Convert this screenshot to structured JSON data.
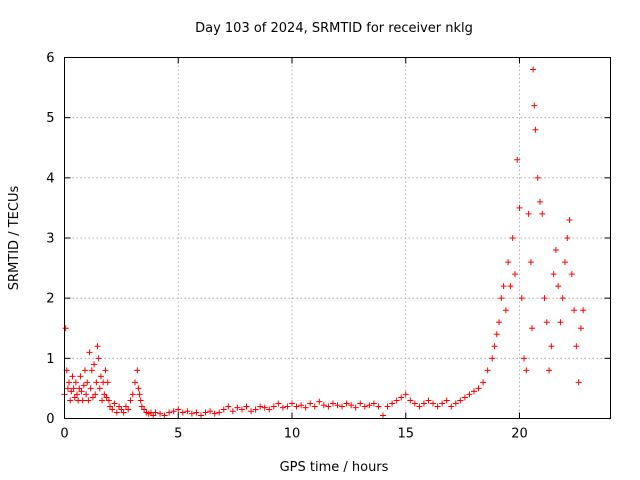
{
  "chart_data": {
    "type": "scatter",
    "title": "Day 103 of 2024, SRMTID for receiver nklg",
    "xlabel": "GPS time / hours",
    "ylabel": "SRMTID / TECUs",
    "xlim": [
      0,
      24
    ],
    "ylim": [
      0,
      6
    ],
    "xticks": [
      0,
      5,
      10,
      15,
      20
    ],
    "yticks": [
      0,
      1,
      2,
      3,
      4,
      5,
      6
    ],
    "grid": true,
    "marker": "+",
    "color": "#ff0000",
    "series": [
      {
        "name": "SRMTID",
        "x": [
          0.0,
          0.05,
          0.1,
          0.15,
          0.2,
          0.25,
          0.3,
          0.35,
          0.4,
          0.45,
          0.5,
          0.55,
          0.6,
          0.65,
          0.7,
          0.75,
          0.8,
          0.85,
          0.9,
          0.95,
          1.0,
          1.05,
          1.1,
          1.15,
          1.2,
          1.25,
          1.3,
          1.35,
          1.4,
          1.45,
          1.5,
          1.55,
          1.6,
          1.65,
          1.7,
          1.75,
          1.8,
          1.85,
          1.9,
          1.95,
          2.0,
          2.1,
          2.2,
          2.3,
          2.4,
          2.5,
          2.6,
          2.7,
          2.8,
          2.9,
          3.0,
          3.1,
          3.2,
          3.25,
          3.3,
          3.35,
          3.4,
          3.5,
          3.6,
          3.7,
          3.8,
          3.9,
          4.0,
          4.2,
          4.4,
          4.6,
          4.8,
          5.0,
          5.2,
          5.4,
          5.6,
          5.8,
          6.0,
          6.2,
          6.4,
          6.6,
          6.8,
          7.0,
          7.2,
          7.4,
          7.6,
          7.8,
          8.0,
          8.2,
          8.4,
          8.6,
          8.8,
          9.0,
          9.2,
          9.4,
          9.6,
          9.8,
          10.0,
          10.2,
          10.4,
          10.6,
          10.8,
          11.0,
          11.2,
          11.4,
          11.6,
          11.8,
          12.0,
          12.2,
          12.4,
          12.6,
          12.8,
          13.0,
          13.2,
          13.4,
          13.6,
          13.8,
          14.0,
          14.2,
          14.4,
          14.6,
          14.8,
          15.0,
          15.2,
          15.4,
          15.6,
          15.8,
          16.0,
          16.2,
          16.4,
          16.6,
          16.8,
          17.0,
          17.2,
          17.4,
          17.6,
          17.8,
          18.0,
          18.2,
          18.4,
          18.6,
          18.8,
          18.9,
          19.0,
          19.1,
          19.2,
          19.3,
          19.4,
          19.5,
          19.6,
          19.7,
          19.8,
          19.9,
          20.0,
          20.1,
          20.2,
          20.3,
          20.4,
          20.5,
          20.55,
          20.6,
          20.65,
          20.7,
          20.8,
          20.9,
          21.0,
          21.1,
          21.2,
          21.3,
          21.4,
          21.5,
          21.6,
          21.7,
          21.8,
          21.9,
          22.0,
          22.1,
          22.2,
          22.3,
          22.4,
          22.5,
          22.6,
          22.7,
          22.8
        ],
        "y": [
          0.4,
          1.5,
          0.8,
          0.5,
          0.6,
          0.3,
          0.45,
          0.7,
          0.5,
          0.35,
          0.6,
          0.4,
          0.3,
          0.5,
          0.7,
          0.45,
          0.3,
          0.55,
          0.8,
          0.4,
          0.6,
          0.3,
          1.1,
          0.5,
          0.8,
          0.35,
          0.9,
          0.4,
          0.6,
          1.2,
          1.0,
          0.5,
          0.7,
          0.3,
          0.6,
          0.4,
          0.8,
          0.35,
          0.6,
          0.3,
          0.2,
          0.15,
          0.25,
          0.1,
          0.2,
          0.15,
          0.1,
          0.2,
          0.15,
          0.3,
          0.4,
          0.6,
          0.8,
          0.5,
          0.4,
          0.3,
          0.2,
          0.15,
          0.1,
          0.08,
          0.1,
          0.05,
          0.1,
          0.08,
          0.05,
          0.1,
          0.12,
          0.15,
          0.1,
          0.12,
          0.08,
          0.1,
          0.05,
          0.1,
          0.12,
          0.08,
          0.1,
          0.15,
          0.2,
          0.12,
          0.18,
          0.15,
          0.2,
          0.12,
          0.15,
          0.2,
          0.18,
          0.15,
          0.2,
          0.25,
          0.18,
          0.2,
          0.25,
          0.2,
          0.22,
          0.18,
          0.25,
          0.2,
          0.28,
          0.22,
          0.2,
          0.25,
          0.22,
          0.2,
          0.25,
          0.22,
          0.18,
          0.25,
          0.2,
          0.22,
          0.25,
          0.2,
          0.05,
          0.2,
          0.25,
          0.3,
          0.35,
          0.4,
          0.3,
          0.25,
          0.2,
          0.25,
          0.3,
          0.25,
          0.2,
          0.25,
          0.3,
          0.2,
          0.25,
          0.3,
          0.35,
          0.4,
          0.45,
          0.5,
          0.6,
          0.8,
          1.0,
          1.2,
          1.4,
          1.6,
          2.0,
          2.2,
          1.8,
          2.6,
          2.2,
          3.0,
          2.4,
          4.3,
          3.5,
          2.0,
          1.0,
          0.8,
          3.4,
          2.6,
          1.5,
          5.8,
          5.2,
          4.8,
          4.0,
          3.6,
          3.4,
          2.0,
          1.6,
          0.8,
          1.2,
          2.4,
          2.8,
          2.2,
          1.6,
          2.0,
          2.6,
          3.0,
          3.3,
          2.4,
          1.8,
          1.2,
          0.6,
          1.5,
          1.8
        ]
      }
    ]
  }
}
